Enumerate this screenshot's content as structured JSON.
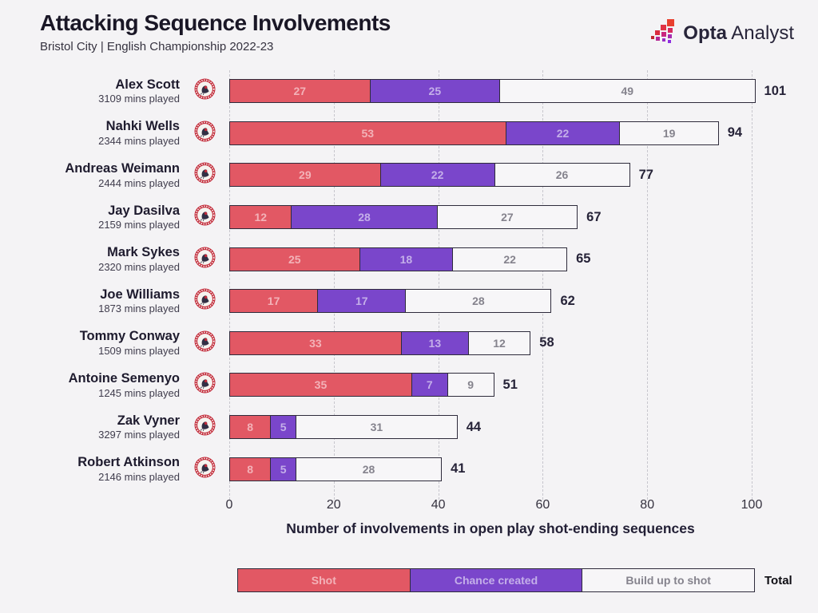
{
  "header": {
    "title": "Attacking Sequence Involvements",
    "subtitle": "Bristol City | English Championship 2022-23"
  },
  "logo": {
    "bold": "Opta",
    "regular": "Analyst"
  },
  "colors": {
    "shot": "#e25864",
    "chance_created": "#7a46cb",
    "build_up_to_shot": "#f7f6f8",
    "accent_dark": "#262338",
    "gridline": "#c7c6cd",
    "background": "#f4f3f5",
    "badge_red": "#c22737"
  },
  "chart_data": {
    "type": "bar",
    "orientation": "horizontal",
    "stacked": true,
    "title": "Attacking Sequence Involvements",
    "subtitle": "Bristol City | English Championship 2022-23",
    "xlabel": "Number of involvements in open play shot-ending sequences",
    "xlim": [
      0,
      100
    ],
    "xticks": [
      0,
      20,
      40,
      60,
      80,
      100
    ],
    "grid": "dashed-vertical",
    "legend_position": "bottom",
    "series": [
      {
        "key": "shot",
        "name": "Shot"
      },
      {
        "key": "chance",
        "name": "Chance created"
      },
      {
        "key": "build",
        "name": "Build up to shot"
      }
    ],
    "total_label": "Total",
    "rows": [
      {
        "name": "Alex Scott",
        "mins": "3109 mins played",
        "shot": 27,
        "chance": 25,
        "build": 49,
        "total": 101
      },
      {
        "name": "Nahki Wells",
        "mins": "2344 mins played",
        "shot": 53,
        "chance": 22,
        "build": 19,
        "total": 94
      },
      {
        "name": "Andreas Weimann",
        "mins": "2444 mins played",
        "shot": 29,
        "chance": 22,
        "build": 26,
        "total": 77
      },
      {
        "name": "Jay Dasilva",
        "mins": "2159 mins played",
        "shot": 12,
        "chance": 28,
        "build": 27,
        "total": 67
      },
      {
        "name": "Mark Sykes",
        "mins": "2320 mins played",
        "shot": 25,
        "chance": 18,
        "build": 22,
        "total": 65
      },
      {
        "name": "Joe Williams",
        "mins": "1873 mins played",
        "shot": 17,
        "chance": 17,
        "build": 28,
        "total": 62
      },
      {
        "name": "Tommy Conway",
        "mins": "1509 mins played",
        "shot": 33,
        "chance": 13,
        "build": 12,
        "total": 58
      },
      {
        "name": "Antoine Semenyo",
        "mins": "1245 mins played",
        "shot": 35,
        "chance": 7,
        "build": 9,
        "total": 51
      },
      {
        "name": "Zak Vyner",
        "mins": "3297 mins played",
        "shot": 8,
        "chance": 5,
        "build": 31,
        "total": 44
      },
      {
        "name": "Robert Atkinson",
        "mins": "2146 mins played",
        "shot": 8,
        "chance": 5,
        "build": 28,
        "total": 41
      }
    ]
  }
}
